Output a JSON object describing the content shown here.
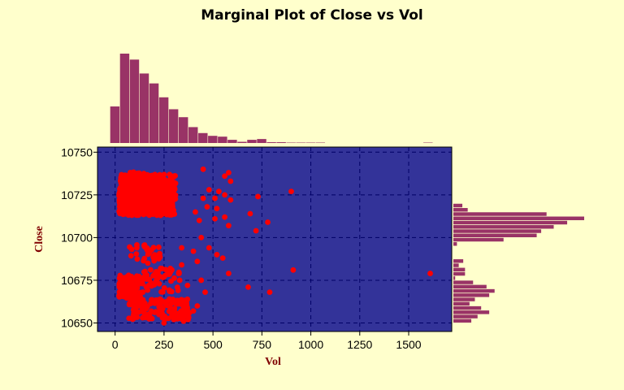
{
  "chart_data": {
    "type": "scatter",
    "title": "Marginal Plot of Close vs Vol",
    "xlabel": "Vol",
    "ylabel": "Close",
    "xlim": [
      -90,
      1720
    ],
    "ylim": [
      10645,
      10753
    ],
    "x_ticks": [
      "0",
      "250",
      "500",
      "750",
      "1000",
      "1250",
      "1500"
    ],
    "y_ticks": [
      "10750",
      "10725",
      "10700",
      "10675",
      "10650"
    ],
    "grid": true,
    "colors": {
      "background": "#ffffcc",
      "plot_area": "#333399",
      "points": "#ff0000",
      "histogram": "#993366",
      "grid": "#000066",
      "axis_label": "#800000"
    },
    "clusters": [
      {
        "x": [
          20,
          310
        ],
        "y": [
          10713,
          10737
        ],
        "n": 560
      },
      {
        "x": [
          20,
          200
        ],
        "y": [
          10715,
          10733
        ],
        "n": 250
      },
      {
        "x": [
          50,
          150
        ],
        "y": [
          10719,
          10739
        ],
        "n": 60
      },
      {
        "x": [
          20,
          130
        ],
        "y": [
          10664,
          10678
        ],
        "n": 140
      },
      {
        "x": [
          130,
          330
        ],
        "y": [
          10668,
          10682
        ],
        "n": 60
      },
      {
        "x": [
          70,
          380
        ],
        "y": [
          10652,
          10664
        ],
        "n": 130
      },
      {
        "x": [
          70,
          230
        ],
        "y": [
          10685,
          10696
        ],
        "n": 35
      }
    ],
    "extra_points": [
      [
        450,
        10740
      ],
      [
        560,
        10736
      ],
      [
        580,
        10738
      ],
      [
        590,
        10733
      ],
      [
        480,
        10728
      ],
      [
        530,
        10727
      ],
      [
        560,
        10725
      ],
      [
        590,
        10722
      ],
      [
        510,
        10723
      ],
      [
        730,
        10724
      ],
      [
        900,
        10727
      ],
      [
        450,
        10723
      ],
      [
        470,
        10718
      ],
      [
        520,
        10717
      ],
      [
        690,
        10714
      ],
      [
        510,
        10711
      ],
      [
        560,
        10712
      ],
      [
        780,
        10709
      ],
      [
        580,
        10707
      ],
      [
        720,
        10704
      ],
      [
        430,
        10710
      ],
      [
        410,
        10715
      ],
      [
        440,
        10700
      ],
      [
        480,
        10694
      ],
      [
        340,
        10694
      ],
      [
        400,
        10692
      ],
      [
        520,
        10690
      ],
      [
        550,
        10688
      ],
      [
        420,
        10686
      ],
      [
        580,
        10679
      ],
      [
        910,
        10681
      ],
      [
        1610,
        10679
      ],
      [
        460,
        10668
      ],
      [
        680,
        10671
      ],
      [
        790,
        10668
      ],
      [
        340,
        10684
      ],
      [
        370,
        10672
      ],
      [
        400,
        10657
      ],
      [
        380,
        10656
      ],
      [
        350,
        10651
      ],
      [
        300,
        10652
      ],
      [
        420,
        10660
      ],
      [
        250,
        10650
      ],
      [
        330,
        10675
      ],
      [
        440,
        10675
      ]
    ],
    "x_histogram": {
      "bin_width": 50,
      "start": -25,
      "counts": [
        92,
        225,
        210,
        175,
        150,
        115,
        85,
        65,
        40,
        25,
        18,
        16,
        8,
        3,
        8,
        10,
        2,
        2,
        1,
        1,
        1,
        1,
        0,
        0,
        0,
        0,
        0,
        0,
        0,
        0,
        0,
        0,
        1
      ]
    },
    "y_histogram": {
      "bin_width": 2.5,
      "start": 10650,
      "counts": [
        20,
        27,
        40,
        31,
        18,
        24,
        40,
        46,
        37,
        22,
        2,
        13,
        13,
        6,
        11,
        0,
        0,
        0,
        4,
        56,
        93,
        98,
        112,
        127,
        146,
        104,
        16,
        10
      ]
    }
  }
}
